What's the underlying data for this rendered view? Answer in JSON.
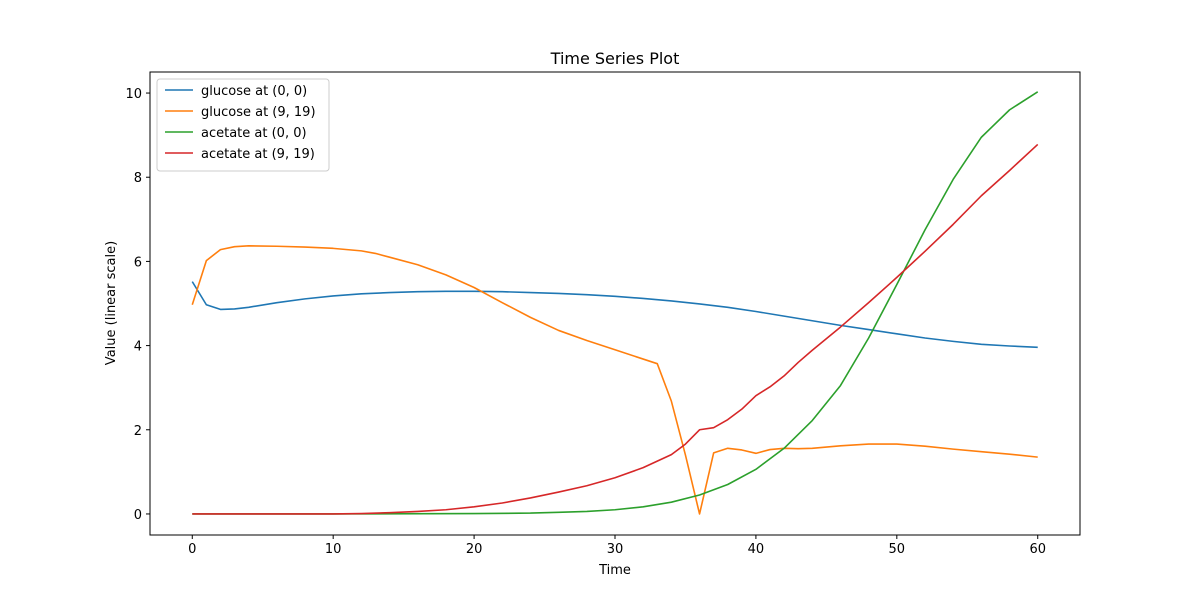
{
  "chart_data": {
    "type": "line",
    "title": "Time Series Plot",
    "xlabel": "Time",
    "ylabel": "Value (linear scale)",
    "xlim": [
      -3,
      63
    ],
    "ylim": [
      -0.5,
      10.5
    ],
    "xticks": [
      0,
      10,
      20,
      30,
      40,
      50,
      60
    ],
    "yticks": [
      0,
      2,
      4,
      6,
      8,
      10
    ],
    "grid": false,
    "legend_position": "top-left",
    "series": [
      {
        "name": "glucose at (0, 0)",
        "color": "#1f77b4",
        "x": [
          0,
          1,
          2,
          3,
          4,
          6,
          8,
          10,
          12,
          14,
          16,
          18,
          20,
          22,
          24,
          26,
          28,
          30,
          32,
          34,
          36,
          38,
          40,
          42,
          44,
          46,
          48,
          50,
          52,
          54,
          56,
          58,
          60
        ],
        "y": [
          5.52,
          4.97,
          4.86,
          4.87,
          4.91,
          5.02,
          5.11,
          5.18,
          5.23,
          5.26,
          5.28,
          5.29,
          5.29,
          5.28,
          5.26,
          5.24,
          5.21,
          5.17,
          5.12,
          5.06,
          4.99,
          4.91,
          4.81,
          4.7,
          4.59,
          4.48,
          4.38,
          4.28,
          4.18,
          4.1,
          4.03,
          3.99,
          3.96
        ]
      },
      {
        "name": "glucose at (9, 19)",
        "color": "#ff7f0e",
        "x": [
          0,
          1,
          2,
          3,
          4,
          6,
          8,
          10,
          12,
          13,
          14,
          16,
          18,
          20,
          22,
          24,
          26,
          28,
          30,
          32,
          33,
          34,
          35,
          36,
          37,
          38,
          39,
          40,
          41,
          42,
          43,
          44,
          46,
          48,
          50,
          52,
          54,
          56,
          58,
          60
        ],
        "y": [
          4.97,
          6.02,
          6.28,
          6.35,
          6.37,
          6.36,
          6.34,
          6.31,
          6.25,
          6.19,
          6.1,
          5.92,
          5.68,
          5.38,
          5.02,
          4.67,
          4.36,
          4.12,
          3.9,
          3.68,
          3.57,
          2.68,
          1.4,
          0.0,
          1.45,
          1.56,
          1.52,
          1.44,
          1.53,
          1.56,
          1.55,
          1.56,
          1.62,
          1.66,
          1.66,
          1.61,
          1.54,
          1.48,
          1.42,
          1.35
        ]
      },
      {
        "name": "acetate at (0, 0)",
        "color": "#2ca02c",
        "x": [
          0,
          10,
          20,
          24,
          26,
          28,
          30,
          32,
          34,
          36,
          38,
          40,
          42,
          44,
          46,
          48,
          50,
          52,
          54,
          56,
          58,
          60
        ],
        "y": [
          0,
          0,
          0.01,
          0.02,
          0.04,
          0.06,
          0.1,
          0.17,
          0.28,
          0.45,
          0.7,
          1.06,
          1.56,
          2.22,
          3.05,
          4.18,
          5.45,
          6.75,
          7.95,
          8.95,
          9.6,
          10.03
        ]
      },
      {
        "name": "acetate at (9, 19)",
        "color": "#d62728",
        "x": [
          0,
          10,
          12,
          14,
          16,
          18,
          20,
          22,
          24,
          26,
          28,
          30,
          32,
          34,
          35,
          36,
          37,
          38,
          39,
          40,
          41,
          42,
          43,
          44,
          46,
          48,
          50,
          52,
          54,
          56,
          58,
          60
        ],
        "y": [
          0,
          0,
          0.01,
          0.03,
          0.06,
          0.1,
          0.17,
          0.26,
          0.38,
          0.52,
          0.67,
          0.86,
          1.1,
          1.41,
          1.66,
          2.0,
          2.05,
          2.24,
          2.49,
          2.81,
          3.02,
          3.28,
          3.6,
          3.89,
          4.44,
          5.02,
          5.62,
          6.24,
          6.88,
          7.56,
          8.16,
          8.78
        ]
      }
    ]
  }
}
